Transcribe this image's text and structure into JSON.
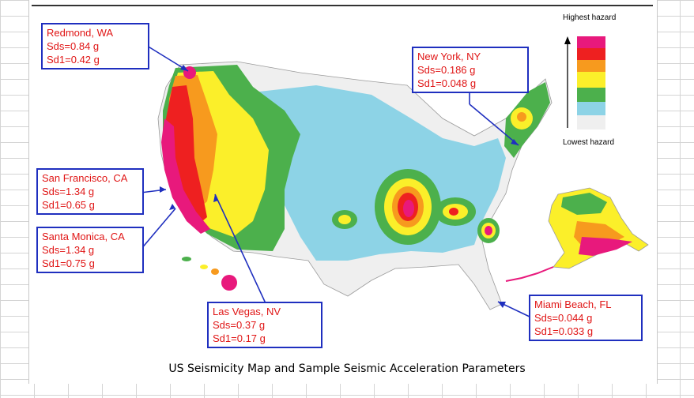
{
  "caption": "US Seismicity Map and Sample Seismic Acceleration Parameters",
  "legend": {
    "top_label": "Highest hazard",
    "bottom_label": "Lowest hazard",
    "colors": [
      "#e8197c",
      "#ee2020",
      "#f79a1e",
      "#fbef2a",
      "#4cb04c",
      "#8dd3e6",
      "#efefef"
    ]
  },
  "callouts": [
    {
      "city": "Redmond, WA",
      "sds": "Sds=0.84 g",
      "sd1": "Sd1=0.42 g"
    },
    {
      "city": "New York, NY",
      "sds": "Sds=0.186 g",
      "sd1": "Sd1=0.048 g"
    },
    {
      "city": "San Francisco, CA",
      "sds": "Sds=1.34 g",
      "sd1": "Sd1=0.65 g"
    },
    {
      "city": "Santa Monica, CA",
      "sds": "Sds=1.34 g",
      "sd1": "Sd1=0.75 g"
    },
    {
      "city": "Las Vegas, NV",
      "sds": "Sds=0.37 g",
      "sd1": "Sd1=0.17 g"
    },
    {
      "city": "Miami Beach, FL",
      "sds": "Sds=0.044 g",
      "sd1": "Sd1=0.033 g"
    }
  ]
}
